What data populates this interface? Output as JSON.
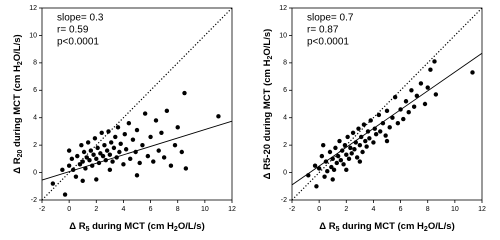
{
  "chart_data": [
    {
      "type": "scatter",
      "xlim": [
        -2,
        12
      ],
      "ylim": [
        -2,
        12
      ],
      "xticks": [
        -2,
        0,
        2,
        4,
        6,
        8,
        10,
        12
      ],
      "yticks": [
        -2,
        0,
        2,
        4,
        6,
        8,
        10,
        12
      ],
      "color": "#000000",
      "x_label_parts": [
        {
          "text": "Δ R"
        },
        {
          "text": "5",
          "sub": true
        },
        {
          "text": " during MCT (cm H"
        },
        {
          "text": "2",
          "sub": true
        },
        {
          "text": "O/L/s)"
        }
      ],
      "y_label_parts": [
        {
          "text": "Δ R"
        },
        {
          "text": "20",
          "sub": true
        },
        {
          "text": " during MCT (cm H"
        },
        {
          "text": "2",
          "sub": true
        },
        {
          "text": "O/L/s)"
        }
      ],
      "annotations": [
        "slope= 0.3",
        "r= 0.59",
        "p<0.0001"
      ],
      "lines": [
        {
          "style": "dotted",
          "x": [
            -2,
            12
          ],
          "y": [
            -2,
            12
          ]
        },
        {
          "style": "solid",
          "x": [
            -2,
            12
          ],
          "y": [
            -0.55,
            3.75
          ]
        }
      ],
      "x": [
        -1.2,
        -0.5,
        -0.3,
        0,
        0.2,
        0.3,
        0.5,
        0.6,
        0.8,
        0.9,
        1.0,
        1.1,
        1.2,
        1.3,
        1.4,
        1.5,
        1.6,
        1.7,
        1.8,
        1.9,
        2.0,
        2.1,
        2.2,
        2.3,
        2.4,
        2.5,
        2.6,
        2.7,
        2.8,
        2.9,
        3.0,
        3.1,
        3.2,
        3.3,
        3.4,
        3.5,
        3.6,
        3.7,
        3.8,
        4.0,
        4.1,
        4.2,
        4.4,
        4.5,
        4.7,
        4.9,
        5.0,
        5.2,
        5.4,
        5.6,
        5.8,
        6.0,
        6.2,
        6.4,
        6.6,
        6.8,
        7.0,
        7.2,
        7.5,
        7.8,
        8.0,
        8.3,
        8.5,
        8.6,
        11.0,
        2.0,
        1.0,
        3.0,
        0.0,
        5.0
      ],
      "values": [
        -0.8,
        0.2,
        -1.6,
        0.5,
        1.0,
        0.2,
        -0.3,
        1.2,
        0.6,
        2.0,
        0.8,
        1.5,
        0.3,
        1.1,
        2.2,
        0.9,
        1.6,
        0.5,
        1.3,
        2.5,
        1.0,
        1.8,
        0.7,
        1.4,
        2.9,
        1.2,
        2.0,
        0.9,
        1.6,
        3.0,
        1.3,
        2.2,
        0.8,
        1.8,
        2.6,
        1.1,
        3.3,
        1.5,
        2.1,
        0.6,
        2.8,
        1.7,
        3.6,
        1.0,
        2.4,
        1.5,
        3.1,
        0.7,
        2.0,
        4.3,
        1.2,
        2.6,
        0.8,
        3.8,
        1.6,
        2.9,
        1.1,
        4.5,
        0.5,
        2.0,
        3.3,
        1.5,
        5.8,
        0.3,
        4.1,
        -0.5,
        -0.6,
        0.2,
        1.6,
        -0.2
      ]
    },
    {
      "type": "scatter",
      "xlim": [
        -2,
        12
      ],
      "ylim": [
        -2,
        12
      ],
      "xticks": [
        -2,
        0,
        2,
        4,
        6,
        8,
        10,
        12
      ],
      "yticks": [
        -2,
        0,
        2,
        4,
        6,
        8,
        10,
        12
      ],
      "color": "#000000",
      "x_label_parts": [
        {
          "text": "Δ R"
        },
        {
          "text": "5",
          "sub": true
        },
        {
          "text": " during MCT (cm H"
        },
        {
          "text": "2",
          "sub": true
        },
        {
          "text": "O/L/s)"
        }
      ],
      "y_label_parts": [
        {
          "text": "Δ R5-20 during MCT (cm H"
        },
        {
          "text": "2",
          "sub": true
        },
        {
          "text": "O/L/s)"
        }
      ],
      "annotations": [
        "slope= 0.7",
        "r= 0.87",
        "p<0.0001"
      ],
      "lines": [
        {
          "style": "dotted",
          "x": [
            -2,
            12
          ],
          "y": [
            -2,
            12
          ]
        },
        {
          "style": "solid",
          "x": [
            -2,
            12
          ],
          "y": [
            -0.9,
            8.7
          ]
        }
      ],
      "x": [
        -0.8,
        -0.3,
        -0.2,
        0,
        0.2,
        0.4,
        0.5,
        0.6,
        0.8,
        0.9,
        1.0,
        1.1,
        1.2,
        1.3,
        1.4,
        1.5,
        1.6,
        1.7,
        1.8,
        1.9,
        2.0,
        2.1,
        2.2,
        2.3,
        2.4,
        2.5,
        2.6,
        2.7,
        2.8,
        2.9,
        3.0,
        3.1,
        3.2,
        3.3,
        3.4,
        3.5,
        3.6,
        3.7,
        3.8,
        4.0,
        4.1,
        4.2,
        4.4,
        4.5,
        4.7,
        4.9,
        5.0,
        5.2,
        5.4,
        5.6,
        5.8,
        6.0,
        6.2,
        6.4,
        6.6,
        6.8,
        7.0,
        7.2,
        7.5,
        7.8,
        8.0,
        8.2,
        8.5,
        8.6,
        11.3,
        1.0,
        2.0,
        3.0,
        0.3,
        5.0
      ],
      "values": [
        -0.2,
        0.5,
        -1.0,
        0.3,
        1.2,
        -0.3,
        0.8,
        0.1,
        1.5,
        0.4,
        1.0,
        0.2,
        1.8,
        0.7,
        1.2,
        2.3,
        0.9,
        1.6,
        0.6,
        2.0,
        1.3,
        2.6,
        1.0,
        1.8,
        1.4,
        2.9,
        1.7,
        2.2,
        1.1,
        3.2,
        2.0,
        2.6,
        1.5,
        3.5,
        2.3,
        1.9,
        3.0,
        2.5,
        3.8,
        2.2,
        3.2,
        2.8,
        4.2,
        3.0,
        3.6,
        2.7,
        4.5,
        3.3,
        4.0,
        5.5,
        3.6,
        4.6,
        3.9,
        5.2,
        4.4,
        6.0,
        4.8,
        5.6,
        6.5,
        5.0,
        6.2,
        7.5,
        8.1,
        5.7,
        7.3,
        -0.5,
        0.2,
        0.8,
        2.0,
        2.3
      ]
    }
  ]
}
